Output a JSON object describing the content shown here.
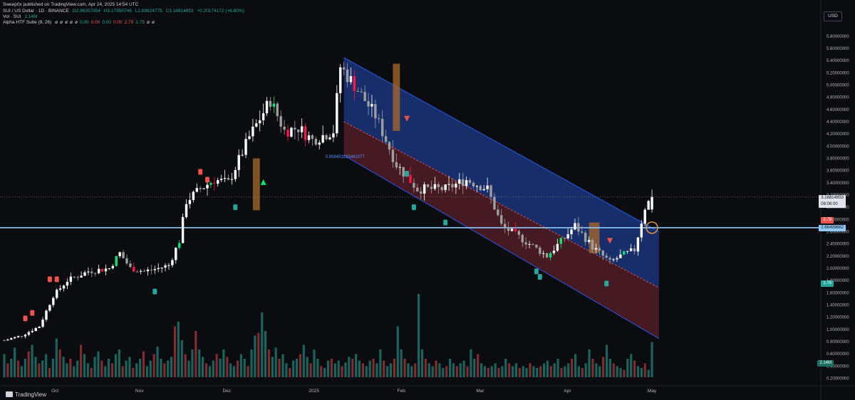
{
  "header": {
    "publisher_line": "Sweep0x published on TradingView.com, Apr 24, 2025 14:54 UTC",
    "symbol": "SUI / US Dollar · 1D · BINANCE",
    "open": "O2.96357854",
    "high": "H3.17950746",
    "low": "L2.89624775",
    "close": "C3.16814853",
    "change": "+0.20174172 (+6.80%)",
    "vol_label": "Vol · SUI",
    "vol_value": "2.14M",
    "indicator_label": "Alpha HTF Suite (9, 26)",
    "indicator_values": [
      {
        "v": "ø",
        "c": "#d1d4dc"
      },
      {
        "v": "ø",
        "c": "#d1d4dc"
      },
      {
        "v": "ø",
        "c": "#d1d4dc"
      },
      {
        "v": "ø",
        "c": "#d1d4dc"
      },
      {
        "v": "ø",
        "c": "#d1d4dc"
      },
      {
        "v": "0.00",
        "c": "#26a69a"
      },
      {
        "v": "0.00",
        "c": "#ef5350"
      },
      {
        "v": "0.00",
        "c": "#26a69a"
      },
      {
        "v": "0.00",
        "c": "#ef5350"
      },
      {
        "v": "2.79",
        "c": "#ef5350"
      },
      {
        "v": "1.75",
        "c": "#26a69a"
      },
      {
        "v": "ø",
        "c": "#d1d4dc"
      },
      {
        "v": "ø",
        "c": "#d1d4dc"
      }
    ]
  },
  "currency": "USD",
  "price_scale": {
    "ticks": [
      "5.80000000",
      "5.60000000",
      "5.40000000",
      "5.20000000",
      "5.00000000",
      "4.80000000",
      "4.60000000",
      "4.40000000",
      "4.20000000",
      "4.00000000",
      "3.80000000",
      "3.60000000",
      "3.40000000",
      "3.20000000",
      "3.00000000",
      "2.80000000",
      "2.60000000",
      "2.40000000",
      "2.20000000",
      "2.00000000",
      "1.80000000",
      "1.60000000",
      "1.40000000",
      "1.20000000",
      "1.00000000",
      "0.80000000",
      "0.60000000",
      "0.40000000",
      "0.20000000"
    ],
    "tick_values": [
      5.8,
      5.6,
      5.4,
      5.2,
      5.0,
      4.8,
      4.6,
      4.4,
      4.2,
      4.0,
      3.8,
      3.6,
      3.4,
      3.2,
      3.0,
      2.8,
      2.6,
      2.4,
      2.2,
      2.0,
      1.8,
      1.6,
      1.4,
      1.2,
      1.0,
      0.8,
      0.6,
      0.4,
      0.2
    ]
  },
  "labels": {
    "last_price": "3.16814853",
    "countdown": "09:06:00",
    "level_line": "2.66499662",
    "level_value": 2.665,
    "last_value": 3.168,
    "upper_band_label": "2.79",
    "upper_band_value": 2.79,
    "lower_band_label": "1.75",
    "lower_band_value": 1.75,
    "vol_tag": "2.14M",
    "fib_text": "0.908453233481077"
  },
  "time_axis": {
    "labels": [
      "Oct",
      "Nov",
      "Dec",
      "2025",
      "Feb",
      "Mar",
      "Apr",
      "May"
    ],
    "positions": [
      18,
      48,
      79,
      110,
      141,
      169,
      200,
      230
    ]
  },
  "footer": {
    "brand": "TradingView"
  },
  "colors": {
    "bg": "#0b0c0f",
    "up": "#26a69a",
    "down": "#ef5350",
    "candle_up_body": "#ffffff",
    "candle_down_body": "#9e9e9e",
    "signal_up": "#26a69a",
    "signal_down": "#ef5350",
    "highlight_green": "#00e676",
    "highlight_red": "#ff1744",
    "channel_top": "#1e3a8a",
    "channel_bottom": "#5a1f2a",
    "level_line": "#90caf9",
    "orange": "#a96a2a"
  },
  "chart_data": {
    "type": "candlestick",
    "symbol": "SUI / US Dollar",
    "interval": "1D",
    "exchange": "BINANCE",
    "ohlc_current": {
      "open": 2.96357854,
      "high": 3.17950746,
      "low": 2.89624775,
      "close": 3.16814853
    },
    "y_range": [
      0.1,
      5.95
    ],
    "x_range": [
      0,
      232
    ],
    "grid": false,
    "close_series": [
      {
        "x": 0,
        "y": 0.82
      },
      {
        "x": 5,
        "y": 0.9
      },
      {
        "x": 10,
        "y": 1.05
      },
      {
        "x": 14,
        "y": 1.55
      },
      {
        "x": 18,
        "y": 1.8
      },
      {
        "x": 24,
        "y": 1.95
      },
      {
        "x": 30,
        "y": 2.0
      },
      {
        "x": 33,
        "y": 2.25
      },
      {
        "x": 36,
        "y": 2.0
      },
      {
        "x": 40,
        "y": 1.95
      },
      {
        "x": 44,
        "y": 2.0
      },
      {
        "x": 47,
        "y": 2.05
      },
      {
        "x": 50,
        "y": 2.45
      },
      {
        "x": 52,
        "y": 3.1
      },
      {
        "x": 56,
        "y": 3.3
      },
      {
        "x": 60,
        "y": 3.45
      },
      {
        "x": 64,
        "y": 3.4
      },
      {
        "x": 70,
        "y": 4.15
      },
      {
        "x": 76,
        "y": 4.75
      },
      {
        "x": 80,
        "y": 4.25
      },
      {
        "x": 84,
        "y": 4.3
      },
      {
        "x": 88,
        "y": 4.1
      },
      {
        "x": 94,
        "y": 4.25
      },
      {
        "x": 96,
        "y": 5.3
      },
      {
        "x": 100,
        "y": 5.0
      },
      {
        "x": 106,
        "y": 4.5
      },
      {
        "x": 112,
        "y": 3.7
      },
      {
        "x": 118,
        "y": 3.3
      },
      {
        "x": 126,
        "y": 3.3
      },
      {
        "x": 132,
        "y": 3.45
      },
      {
        "x": 138,
        "y": 3.3
      },
      {
        "x": 142,
        "y": 2.7
      },
      {
        "x": 150,
        "y": 2.4
      },
      {
        "x": 155,
        "y": 2.2
      },
      {
        "x": 160,
        "y": 2.5
      },
      {
        "x": 163,
        "y": 2.7
      },
      {
        "x": 168,
        "y": 2.35
      },
      {
        "x": 173,
        "y": 2.1
      },
      {
        "x": 176,
        "y": 2.2
      },
      {
        "x": 180,
        "y": 2.3
      },
      {
        "x": 183,
        "y": 3.0
      },
      {
        "x": 185,
        "y": 3.168
      }
    ],
    "markers": [
      {
        "x": 6,
        "y": 1.18,
        "type": "sell_tag"
      },
      {
        "x": 8,
        "y": 1.27,
        "type": "sell_tag"
      },
      {
        "x": 13,
        "y": 1.82,
        "type": "sell_tag"
      },
      {
        "x": 15,
        "y": 1.82,
        "type": "sell_tag"
      },
      {
        "x": 56,
        "y": 3.58,
        "type": "sell_tag"
      },
      {
        "x": 58,
        "y": 3.45,
        "type": "sell_tag"
      },
      {
        "x": 43,
        "y": 1.62,
        "type": "buy_tag"
      },
      {
        "x": 66,
        "y": 3.0,
        "type": "buy_tag"
      },
      {
        "x": 115,
        "y": 3.55,
        "type": "buy_tag"
      },
      {
        "x": 117,
        "y": 3.0,
        "type": "buy_tag"
      },
      {
        "x": 126,
        "y": 2.75,
        "type": "buy_tag"
      },
      {
        "x": 152,
        "y": 1.95,
        "type": "buy_tag"
      },
      {
        "x": 153,
        "y": 1.86,
        "type": "buy_tag"
      },
      {
        "x": 172,
        "y": 1.75,
        "type": "buy_tag"
      },
      {
        "x": 74,
        "y": 3.4,
        "type": "buy_arrow"
      },
      {
        "x": 115,
        "y": 4.45,
        "type": "sell_arrow"
      },
      {
        "x": 173,
        "y": 2.45,
        "type": "sell_arrow"
      }
    ],
    "orange_zones": [
      {
        "x0": 71,
        "x1": 73,
        "top": 3.8,
        "bottom": 2.95
      },
      {
        "x0": 111,
        "x1": 113,
        "top": 5.35,
        "bottom": 4.25
      },
      {
        "x0": 167,
        "x1": 170,
        "top": 2.75,
        "bottom": 2.25
      }
    ],
    "channel": {
      "upper": [
        {
          "x": 97,
          "y": 5.45
        },
        {
          "x": 187,
          "y": 2.6
        }
      ],
      "mid": [
        {
          "x": 97,
          "y": 4.4
        },
        {
          "x": 187,
          "y": 1.68
        }
      ],
      "lower": [
        {
          "x": 97,
          "y": 3.85
        },
        {
          "x": 187,
          "y": 0.85
        }
      ]
    },
    "level_line_value": 2.665,
    "dotted_line_value": 3.168,
    "circle_marker": {
      "x": 185,
      "y": 2.665
    },
    "volume": {
      "note": "relative bar heights (0-1)",
      "values": [
        0.25,
        0.15,
        0.2,
        0.32,
        0.18,
        0.12,
        0.2,
        0.28,
        0.35,
        0.22,
        0.15,
        0.18,
        0.25,
        0.1,
        0.2,
        0.42,
        0.3,
        0.22,
        0.15,
        0.2,
        0.12,
        0.18,
        0.35,
        0.25,
        0.15,
        0.1,
        0.22,
        0.28,
        0.18,
        0.12,
        0.2,
        0.15,
        0.25,
        0.3,
        0.12,
        0.18,
        0.22,
        0.1,
        0.15,
        0.2,
        0.28,
        0.12,
        0.18,
        0.25,
        0.33,
        0.2,
        0.15,
        0.18,
        0.22,
        0.55,
        0.6,
        0.4,
        0.25,
        0.18,
        0.3,
        0.5,
        0.3,
        0.22,
        0.15,
        0.12,
        0.18,
        0.25,
        0.2,
        0.3,
        0.22,
        0.15,
        0.12,
        0.18,
        0.25,
        0.2,
        0.12,
        0.3,
        0.45,
        0.48,
        0.7,
        0.5,
        0.3,
        0.22,
        0.32,
        0.2,
        0.25,
        0.15,
        0.1,
        0.18,
        0.2,
        0.25,
        0.35,
        0.22,
        0.15,
        0.3,
        0.2,
        0.12,
        0.1,
        0.18,
        0.2,
        0.15,
        0.18,
        0.12,
        0.16,
        0.22,
        0.2,
        0.25,
        0.18,
        0.15,
        0.12,
        0.18,
        0.2,
        0.15,
        0.3,
        0.18,
        0.12,
        0.15,
        0.2,
        0.55,
        0.3,
        0.2,
        0.15,
        0.12,
        0.15,
        0.9,
        0.3,
        0.2,
        0.15,
        0.12,
        0.18,
        0.15,
        0.1,
        0.12,
        0.2,
        0.15,
        0.12,
        0.15,
        0.18,
        0.12,
        0.3,
        0.2,
        0.25,
        0.15,
        0.12,
        0.1,
        0.12,
        0.15,
        0.1,
        0.12,
        0.2,
        0.15,
        0.12,
        0.15,
        0.1,
        0.12,
        0.1,
        0.15,
        0.12,
        0.1,
        0.12,
        0.15,
        0.18,
        0.12,
        0.15,
        0.2,
        0.1,
        0.12,
        0.15,
        0.2,
        0.25,
        0.12,
        0.1,
        0.15,
        0.3,
        0.2,
        0.15,
        0.12,
        0.22,
        0.35,
        0.2,
        0.15,
        0.12,
        0.1,
        0.08,
        0.2,
        0.25,
        0.18,
        0.12,
        0.1,
        0.15,
        0.08,
        0.38
      ]
    }
  }
}
